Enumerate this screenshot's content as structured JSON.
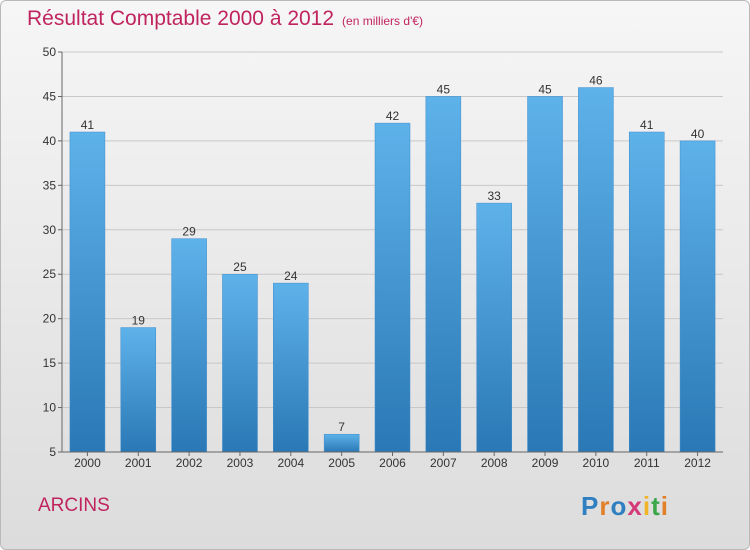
{
  "chart": {
    "title": "Résultat Comptable 2000 à 2012",
    "subtitle": "(en milliers d'€)"
  },
  "commune": "ARCINS",
  "brand": {
    "text": "Proxiti",
    "letters": [
      {
        "ch": "P",
        "color": "#2f7fc1"
      },
      {
        "ch": "r",
        "color": "#e2802a"
      },
      {
        "ch": "o",
        "color": "#2f7fc1"
      },
      {
        "ch": "x",
        "color": "#d43a78"
      },
      {
        "ch": "i",
        "color": "#f0b429"
      },
      {
        "ch": "t",
        "color": "#3aa84a"
      },
      {
        "ch": "i",
        "color": "#e2802a"
      }
    ]
  },
  "colors": {
    "bar_top": "#5eb2ea",
    "bar_bottom": "#2a78b5",
    "grid": "#c8c8c8",
    "axis": "#666666",
    "text": "#333333"
  },
  "chart_data": {
    "type": "bar",
    "title": "Résultat Comptable 2000 à 2012",
    "subtitle": "(en milliers d'€)",
    "xlabel": "",
    "ylabel": "",
    "categories": [
      "2000",
      "2001",
      "2002",
      "2003",
      "2004",
      "2005",
      "2006",
      "2007",
      "2008",
      "2009",
      "2010",
      "2011",
      "2012"
    ],
    "values": [
      41,
      19,
      29,
      25,
      24,
      7,
      42,
      45,
      33,
      45,
      46,
      41,
      40
    ],
    "ylim": [
      5,
      50
    ],
    "yticks": [
      5,
      10,
      15,
      20,
      25,
      30,
      35,
      40,
      45,
      50
    ],
    "grid": true,
    "legend": "none"
  }
}
